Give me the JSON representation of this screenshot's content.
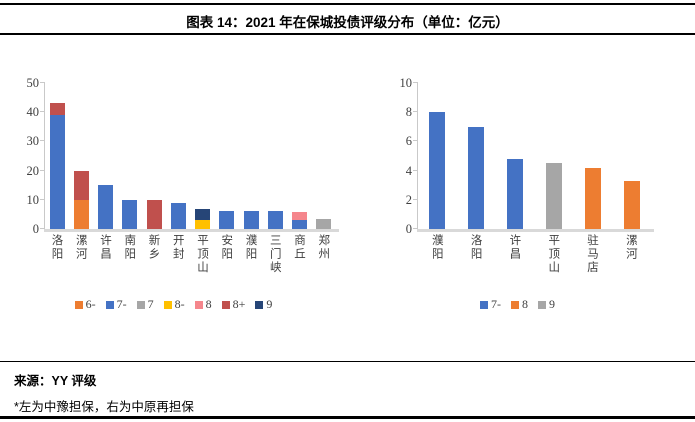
{
  "header": {
    "title": "图表 14：2021 年在保城投债评级分布（单位：亿元）"
  },
  "footer": {
    "source": "来源：YY 评级",
    "note": "*左为中豫担保，右为中原再担保"
  },
  "colors": {
    "blue": "#4472C4",
    "orange": "#ED7D31",
    "gray": "#A6A6A6",
    "yellow": "#FFC000",
    "pink": "#F5868C",
    "brick": "#C0504D",
    "navy": "#264577",
    "axis": "#C9C9C9",
    "baseline": "#D9D9D9"
  },
  "chart_data": [
    {
      "type": "bar",
      "stacked": true,
      "note": "左为中豫担保",
      "ylim": [
        0,
        50
      ],
      "yticks": [
        0,
        10,
        20,
        30,
        40,
        50
      ],
      "grid": false,
      "legend_position": "bottom",
      "categories": [
        "洛阳",
        "漯河",
        "许昌",
        "南阳",
        "新乡",
        "开封",
        "平顶山",
        "安阳",
        "濮阳",
        "三门峡",
        "商丘",
        "郑州"
      ],
      "legend": [
        {
          "label": "6-",
          "color": "#ED7D31"
        },
        {
          "label": "7-",
          "color": "#4472C4"
        },
        {
          "label": "7",
          "color": "#A6A6A6"
        },
        {
          "label": "8-",
          "color": "#FFC000"
        },
        {
          "label": "8",
          "color": "#F5868C"
        },
        {
          "label": "8+",
          "color": "#C0504D"
        },
        {
          "label": "9",
          "color": "#264577"
        }
      ],
      "series": [
        {
          "name": "6-",
          "values": [
            0,
            10,
            0,
            0,
            0,
            0,
            0,
            0,
            0,
            0,
            0,
            0
          ]
        },
        {
          "name": "7-",
          "values": [
            39,
            0,
            15,
            10,
            0,
            9,
            0,
            6,
            6,
            6,
            3,
            0
          ]
        },
        {
          "name": "7",
          "values": [
            0,
            0,
            0,
            0,
            0,
            0,
            0,
            0,
            0,
            0,
            0,
            3.5
          ]
        },
        {
          "name": "8-",
          "values": [
            0,
            0,
            0,
            0,
            0,
            0,
            3,
            0,
            0,
            0,
            0,
            0
          ]
        },
        {
          "name": "8",
          "values": [
            0,
            0,
            0,
            0,
            0,
            0,
            0,
            0,
            0,
            0,
            3,
            0
          ]
        },
        {
          "name": "8+",
          "values": [
            4,
            10,
            0,
            0,
            10,
            0,
            0,
            0,
            0,
            0,
            0,
            0
          ]
        },
        {
          "name": "9",
          "values": [
            0,
            0,
            0,
            0,
            0,
            0,
            4,
            0,
            0,
            0,
            0,
            0
          ]
        }
      ]
    },
    {
      "type": "bar",
      "stacked": false,
      "note": "右为中原再担保",
      "ylim": [
        0,
        10
      ],
      "yticks": [
        0,
        2,
        4,
        6,
        8,
        10
      ],
      "grid": false,
      "legend_position": "bottom",
      "categories": [
        "濮阳",
        "洛阳",
        "许昌",
        "平顶山",
        "驻马店",
        "漯河"
      ],
      "legend": [
        {
          "label": "7-",
          "color": "#4472C4"
        },
        {
          "label": "8",
          "color": "#ED7D31"
        },
        {
          "label": "9",
          "color": "#A6A6A6"
        }
      ],
      "series": [
        {
          "name": "7-",
          "values": [
            8,
            7,
            4.8,
            0,
            0,
            0
          ]
        },
        {
          "name": "8",
          "values": [
            0,
            0,
            0,
            0,
            4.2,
            3.3
          ]
        },
        {
          "name": "9",
          "values": [
            0,
            0,
            0,
            4.5,
            0,
            0
          ]
        }
      ]
    }
  ]
}
